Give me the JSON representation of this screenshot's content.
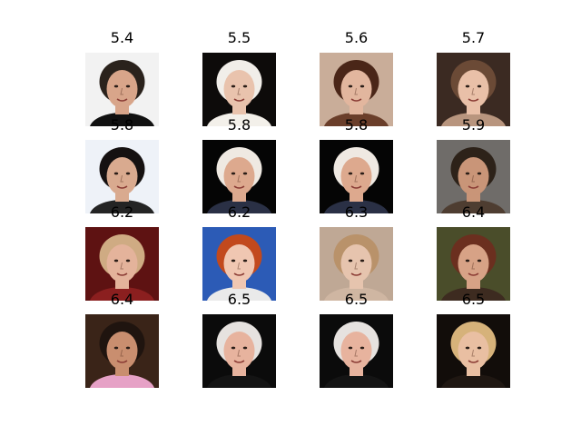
{
  "grid": {
    "items": [
      {
        "score": "5.4",
        "bg": "#f2f2f2",
        "skin": "#d8a58a",
        "hair": "#2a221c",
        "shirt": "#111111"
      },
      {
        "score": "5.5",
        "bg": "#0d0b0a",
        "skin": "#e9c3ad",
        "hair": "#f1eee9",
        "shirt": "#f3f0ea"
      },
      {
        "score": "5.6",
        "bg": "#c9ad99",
        "skin": "#e2b69e",
        "hair": "#4a2618",
        "shirt": "#6a3e2a"
      },
      {
        "score": "5.7",
        "bg": "#3b2a22",
        "skin": "#e9c0a8",
        "hair": "#6b4a36",
        "shirt": "#b8957e"
      },
      {
        "score": "5.8",
        "bg": "#eef2f8",
        "skin": "#d9aa8f",
        "hair": "#151111",
        "shirt": "#242424"
      },
      {
        "score": "5.8",
        "bg": "#050505",
        "skin": "#dda98e",
        "hair": "#efe9e2",
        "shirt": "#2a3045"
      },
      {
        "score": "5.8",
        "bg": "#050505",
        "skin": "#dda98e",
        "hair": "#efe9e2",
        "shirt": "#2a3045"
      },
      {
        "score": "5.9",
        "bg": "#6f6c69",
        "skin": "#c99578",
        "hair": "#2d2219",
        "shirt": "#4e3d31"
      },
      {
        "score": "6.2",
        "bg": "#5e1212",
        "skin": "#e4b39b",
        "hair": "#cfab83",
        "shirt": "#8b1f1f"
      },
      {
        "score": "6.2",
        "bg": "#2c5bb6",
        "skin": "#f0c7b2",
        "hair": "#c2491d",
        "shirt": "#eaeaea"
      },
      {
        "score": "6.3",
        "bg": "#bfa895",
        "skin": "#e6c4ae",
        "hair": "#b9926a",
        "shirt": "#cfb6a2"
      },
      {
        "score": "6.4",
        "bg": "#4a4d2a",
        "skin": "#d7a286",
        "hair": "#6b2f1f",
        "shirt": "#3d2b20"
      },
      {
        "score": "6.4",
        "bg": "#3a2418",
        "skin": "#c98e6f",
        "hair": "#1f140f",
        "shirt": "#e6a1c6"
      },
      {
        "score": "6.5",
        "bg": "#0b0b0b",
        "skin": "#e7b39e",
        "hair": "#e6e2df",
        "shirt": "#141414"
      },
      {
        "score": "6.5",
        "bg": "#0b0b0b",
        "skin": "#e7b39e",
        "hair": "#e6e2df",
        "shirt": "#141414"
      },
      {
        "score": "6.5",
        "bg": "#120d0a",
        "skin": "#e9bfa2",
        "hair": "#d6b27a",
        "shirt": "#1f1712"
      }
    ]
  }
}
